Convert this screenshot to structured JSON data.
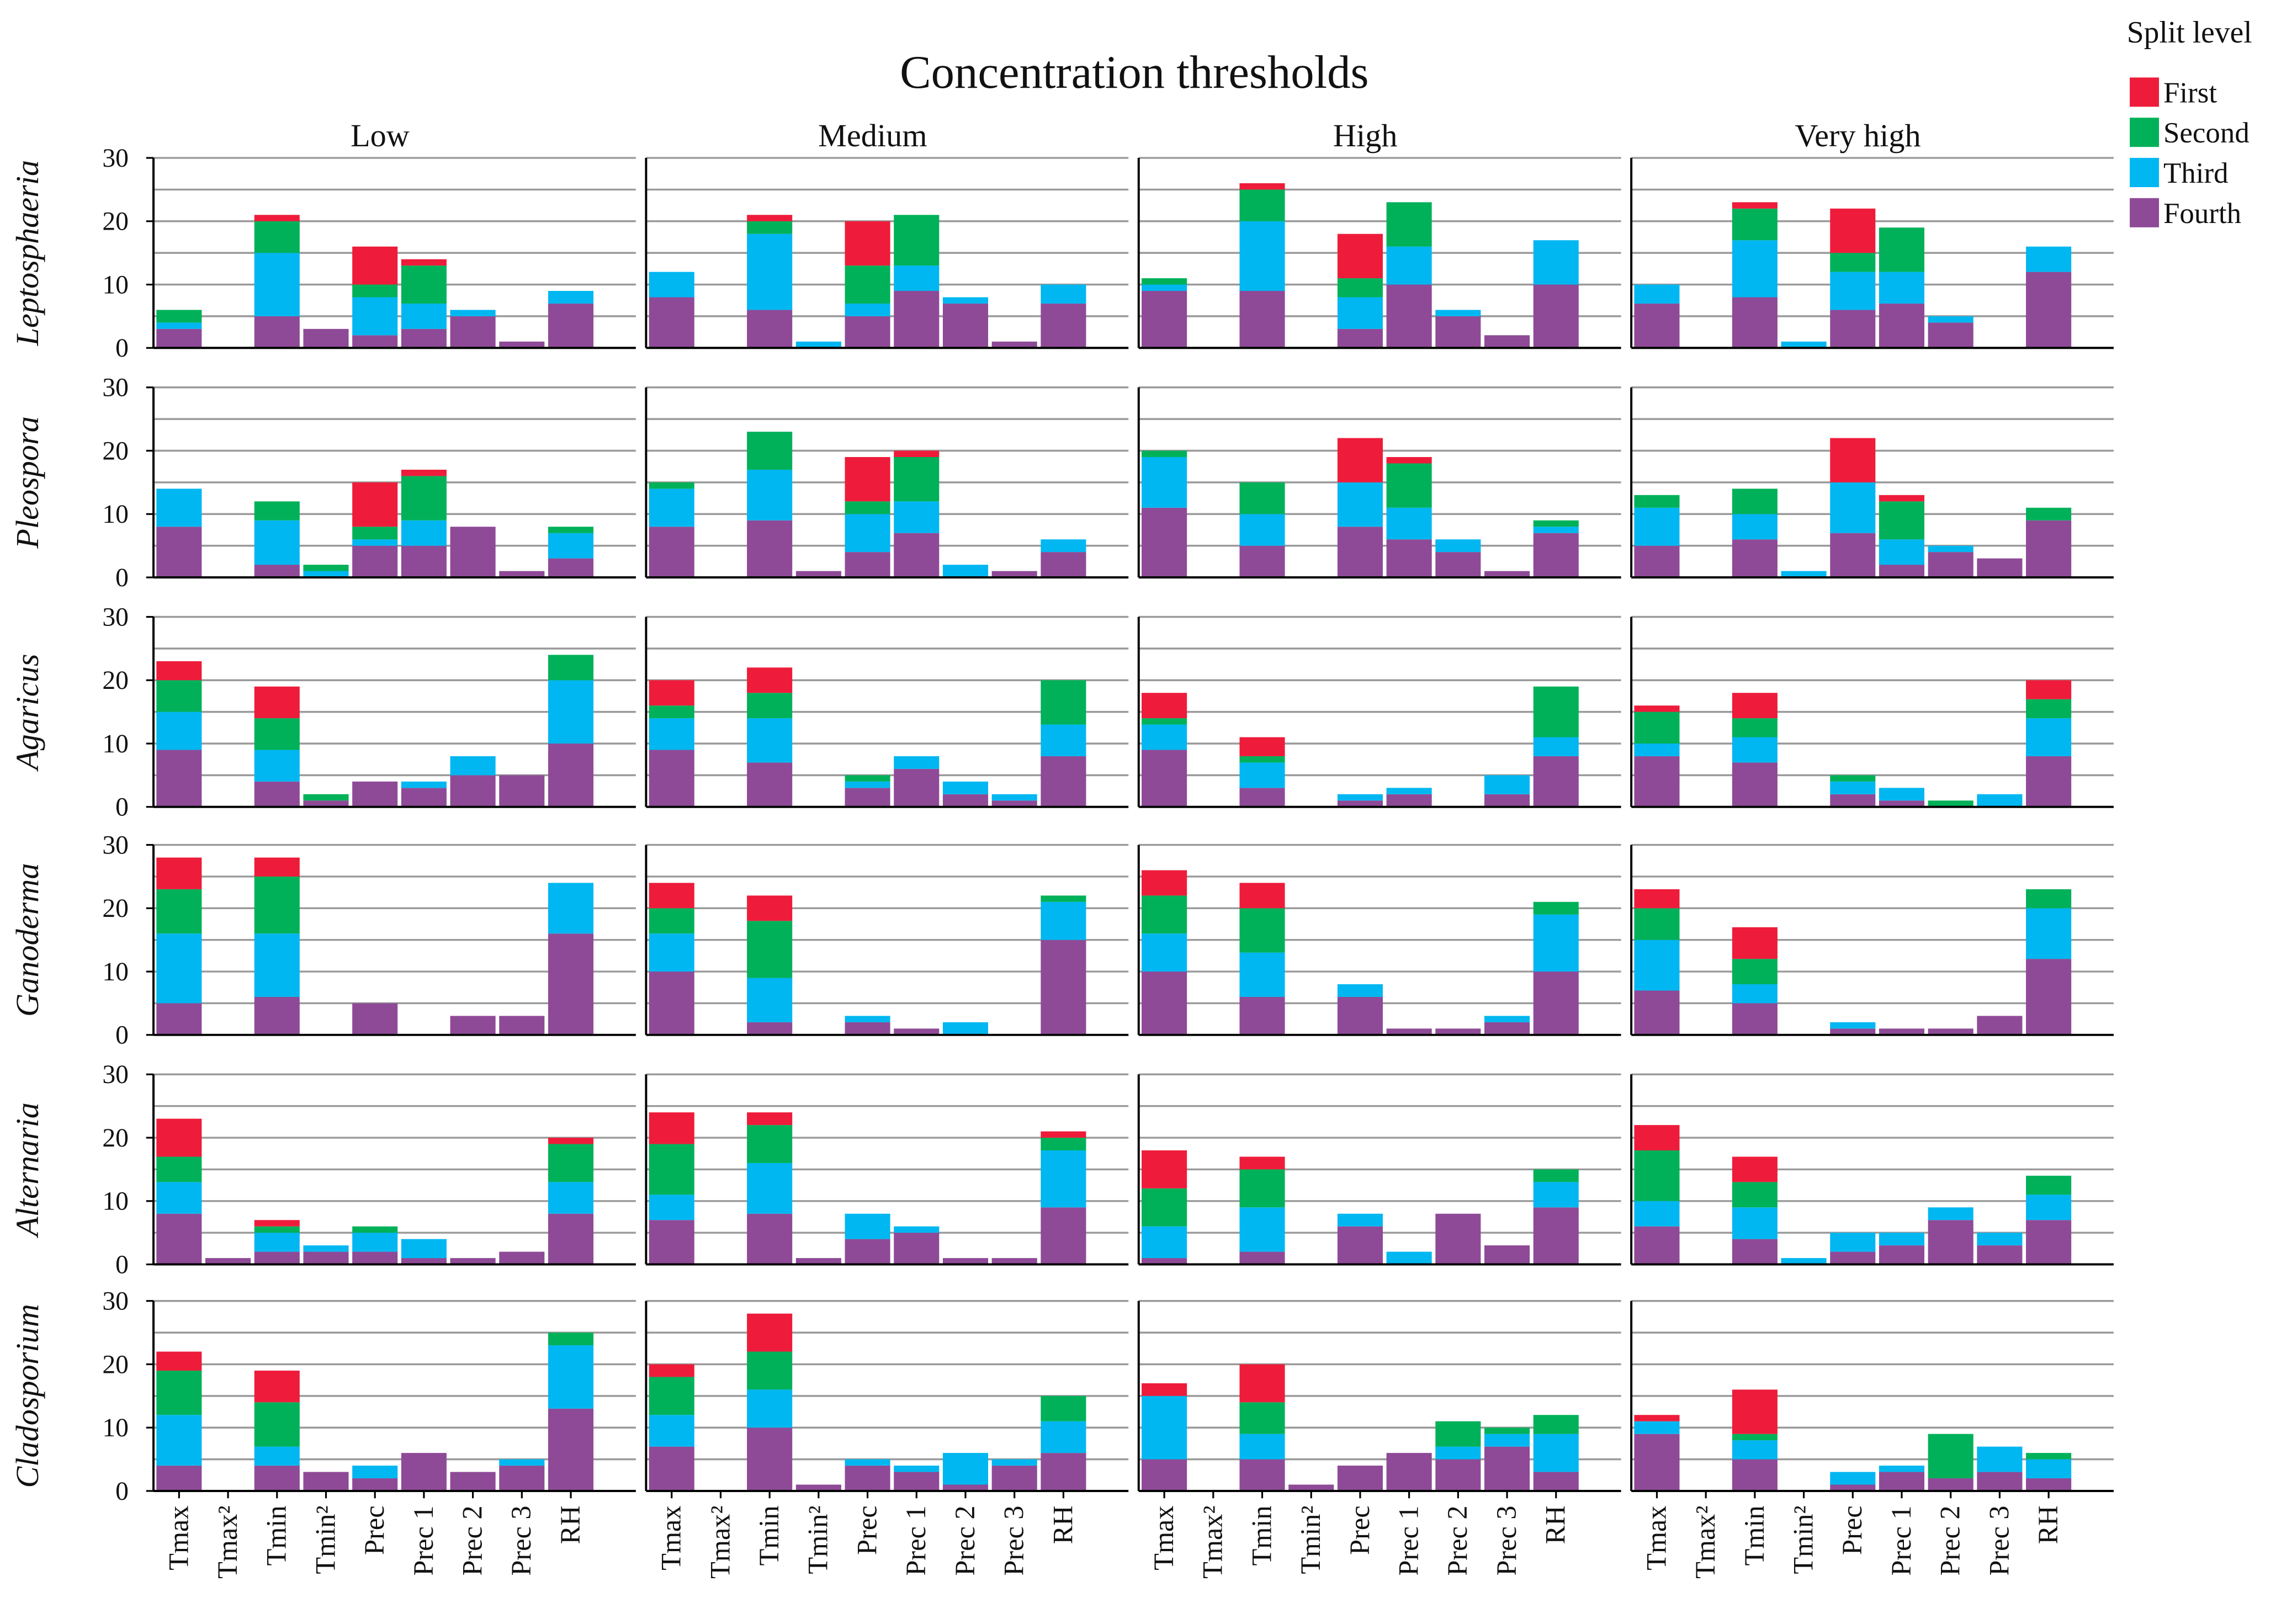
{
  "chart_data": {
    "type": "bar",
    "stacked": true,
    "title": "Concentration thresholds",
    "columns": [
      "Low",
      "Medium",
      "High",
      "Very high"
    ],
    "rows": [
      "Leptosphaeria",
      "Pleospora",
      "Agaricus",
      "Ganoderma",
      "Alternaria",
      "Cladosporium"
    ],
    "categories": [
      "Tmax",
      "Tmax²",
      "Tmin",
      "Tmin²",
      "Prec",
      "Prec 1",
      "Prec 2",
      "Prec 3",
      "RH"
    ],
    "ylim": [
      0,
      30
    ],
    "yticks": [
      "0",
      "10",
      "20",
      "30"
    ],
    "grid": true,
    "legend": {
      "title": "Split level",
      "placement": "top-right",
      "items": [
        {
          "name": "First",
          "color": "#EE1C3A"
        },
        {
          "name": "Second",
          "color": "#00B159"
        },
        {
          "name": "Third",
          "color": "#00B7F1"
        },
        {
          "name": "Fourth",
          "color": "#8E4A97"
        }
      ]
    },
    "stack_order": [
      "Fourth",
      "Third",
      "Second",
      "First"
    ],
    "panels": [
      [
        [
          [
            3,
            1,
            2,
            0
          ],
          [
            0,
            0,
            0,
            0
          ],
          [
            5,
            10,
            5,
            1
          ],
          [
            3,
            0,
            0,
            0
          ],
          [
            2,
            6,
            2,
            6
          ],
          [
            3,
            4,
            6,
            1
          ],
          [
            5,
            1,
            0,
            0
          ],
          [
            1,
            0,
            0,
            0
          ],
          [
            7,
            2,
            0,
            0
          ]
        ],
        [
          [
            8,
            4,
            0,
            0
          ],
          [
            0,
            0,
            0,
            0
          ],
          [
            6,
            12,
            2,
            1
          ],
          [
            0,
            1,
            0,
            0
          ],
          [
            5,
            2,
            6,
            7
          ],
          [
            9,
            4,
            8,
            0
          ],
          [
            7,
            1,
            0,
            0
          ],
          [
            1,
            0,
            0,
            0
          ],
          [
            7,
            3,
            0,
            0
          ]
        ],
        [
          [
            9,
            1,
            1,
            0
          ],
          [
            0,
            0,
            0,
            0
          ],
          [
            9,
            11,
            5,
            1
          ],
          [
            0,
            0,
            0,
            0
          ],
          [
            3,
            5,
            3,
            7
          ],
          [
            10,
            6,
            7,
            0
          ],
          [
            5,
            1,
            0,
            0
          ],
          [
            2,
            0,
            0,
            0
          ],
          [
            10,
            7,
            0,
            0
          ]
        ],
        [
          [
            7,
            3,
            0,
            0
          ],
          [
            0,
            0,
            0,
            0
          ],
          [
            8,
            9,
            5,
            1
          ],
          [
            0,
            1,
            0,
            0
          ],
          [
            6,
            6,
            3,
            7
          ],
          [
            7,
            5,
            7,
            0
          ],
          [
            4,
            1,
            0,
            0
          ],
          [
            0,
            0,
            0,
            0
          ],
          [
            12,
            4,
            0,
            0
          ]
        ]
      ],
      [
        [
          [
            8,
            6,
            0,
            0
          ],
          [
            0,
            0,
            0,
            0
          ],
          [
            2,
            7,
            3,
            0
          ],
          [
            0,
            1,
            1,
            0
          ],
          [
            5,
            1,
            2,
            7
          ],
          [
            5,
            4,
            7,
            1
          ],
          [
            8,
            0,
            0,
            0
          ],
          [
            1,
            0,
            0,
            0
          ],
          [
            3,
            4,
            1,
            0
          ]
        ],
        [
          [
            8,
            6,
            1,
            0
          ],
          [
            0,
            0,
            0,
            0
          ],
          [
            9,
            8,
            6,
            0
          ],
          [
            1,
            0,
            0,
            0
          ],
          [
            4,
            6,
            2,
            7
          ],
          [
            7,
            5,
            7,
            1
          ],
          [
            0,
            2,
            0,
            0
          ],
          [
            1,
            0,
            0,
            0
          ],
          [
            4,
            2,
            0,
            0
          ]
        ],
        [
          [
            11,
            8,
            1,
            0
          ],
          [
            0,
            0,
            0,
            0
          ],
          [
            5,
            5,
            5,
            0
          ],
          [
            0,
            0,
            0,
            0
          ],
          [
            8,
            7,
            0,
            7
          ],
          [
            6,
            5,
            7,
            1
          ],
          [
            4,
            2,
            0,
            0
          ],
          [
            1,
            0,
            0,
            0
          ],
          [
            7,
            1,
            1,
            0
          ]
        ],
        [
          [
            5,
            6,
            2,
            0
          ],
          [
            0,
            0,
            0,
            0
          ],
          [
            6,
            4,
            4,
            0
          ],
          [
            0,
            1,
            0,
            0
          ],
          [
            7,
            8,
            0,
            7
          ],
          [
            2,
            4,
            6,
            1
          ],
          [
            4,
            1,
            0,
            0
          ],
          [
            3,
            0,
            0,
            0
          ],
          [
            9,
            0,
            2,
            0
          ]
        ]
      ],
      [
        [
          [
            9,
            6,
            5,
            3
          ],
          [
            0,
            0,
            0,
            0
          ],
          [
            4,
            5,
            5,
            5
          ],
          [
            1,
            0,
            1,
            0
          ],
          [
            4,
            0,
            0,
            0
          ],
          [
            3,
            1,
            0,
            0
          ],
          [
            5,
            3,
            0,
            0
          ],
          [
            5,
            0,
            0,
            0
          ],
          [
            10,
            10,
            4,
            0
          ]
        ],
        [
          [
            9,
            5,
            2,
            4
          ],
          [
            0,
            0,
            0,
            0
          ],
          [
            7,
            7,
            4,
            4
          ],
          [
            0,
            0,
            0,
            0
          ],
          [
            3,
            1,
            1,
            0
          ],
          [
            6,
            2,
            0,
            0
          ],
          [
            2,
            2,
            0,
            0
          ],
          [
            1,
            1,
            0,
            0
          ],
          [
            8,
            5,
            7,
            0
          ]
        ],
        [
          [
            9,
            4,
            1,
            4
          ],
          [
            0,
            0,
            0,
            0
          ],
          [
            3,
            4,
            1,
            3
          ],
          [
            0,
            0,
            0,
            0
          ],
          [
            1,
            1,
            0,
            0
          ],
          [
            2,
            1,
            0,
            0
          ],
          [
            0,
            0,
            0,
            0
          ],
          [
            2,
            3,
            0,
            0
          ],
          [
            8,
            3,
            8,
            0
          ]
        ],
        [
          [
            8,
            2,
            5,
            1
          ],
          [
            0,
            0,
            0,
            0
          ],
          [
            7,
            4,
            3,
            4
          ],
          [
            0,
            0,
            0,
            0
          ],
          [
            2,
            2,
            1,
            0
          ],
          [
            1,
            2,
            0,
            0
          ],
          [
            0,
            0,
            1,
            0
          ],
          [
            0,
            2,
            0,
            0
          ],
          [
            8,
            6,
            3,
            3
          ]
        ]
      ],
      [
        [
          [
            5,
            11,
            7,
            5
          ],
          [
            0,
            0,
            0,
            0
          ],
          [
            6,
            10,
            9,
            3
          ],
          [
            0,
            0,
            0,
            0
          ],
          [
            5,
            0,
            0,
            0
          ],
          [
            0,
            0,
            0,
            0
          ],
          [
            3,
            0,
            0,
            0
          ],
          [
            3,
            0,
            0,
            0
          ],
          [
            16,
            8,
            0,
            0
          ]
        ],
        [
          [
            10,
            6,
            4,
            4
          ],
          [
            0,
            0,
            0,
            0
          ],
          [
            2,
            7,
            9,
            4
          ],
          [
            0,
            0,
            0,
            0
          ],
          [
            2,
            1,
            0,
            0
          ],
          [
            1,
            0,
            0,
            0
          ],
          [
            0,
            2,
            0,
            0
          ],
          [
            0,
            0,
            0,
            0
          ],
          [
            15,
            6,
            1,
            0
          ]
        ],
        [
          [
            10,
            6,
            6,
            4
          ],
          [
            0,
            0,
            0,
            0
          ],
          [
            6,
            7,
            7,
            4
          ],
          [
            0,
            0,
            0,
            0
          ],
          [
            6,
            2,
            0,
            0
          ],
          [
            1,
            0,
            0,
            0
          ],
          [
            1,
            0,
            0,
            0
          ],
          [
            2,
            1,
            0,
            0
          ],
          [
            10,
            9,
            2,
            0
          ]
        ],
        [
          [
            7,
            8,
            5,
            3
          ],
          [
            0,
            0,
            0,
            0
          ],
          [
            5,
            3,
            4,
            5
          ],
          [
            0,
            0,
            0,
            0
          ],
          [
            1,
            1,
            0,
            0
          ],
          [
            1,
            0,
            0,
            0
          ],
          [
            1,
            0,
            0,
            0
          ],
          [
            3,
            0,
            0,
            0
          ],
          [
            12,
            8,
            3,
            0
          ]
        ]
      ],
      [
        [
          [
            8,
            5,
            4,
            6
          ],
          [
            1,
            0,
            0,
            0
          ],
          [
            2,
            3,
            1,
            1
          ],
          [
            2,
            1,
            0,
            0
          ],
          [
            2,
            3,
            1,
            0
          ],
          [
            1,
            3,
            0,
            0
          ],
          [
            1,
            0,
            0,
            0
          ],
          [
            2,
            0,
            0,
            0
          ],
          [
            8,
            5,
            6,
            1
          ]
        ],
        [
          [
            7,
            4,
            8,
            5
          ],
          [
            0,
            0,
            0,
            0
          ],
          [
            8,
            8,
            6,
            2
          ],
          [
            1,
            0,
            0,
            0
          ],
          [
            4,
            4,
            0,
            0
          ],
          [
            5,
            1,
            0,
            0
          ],
          [
            1,
            0,
            0,
            0
          ],
          [
            1,
            0,
            0,
            0
          ],
          [
            9,
            9,
            2,
            1
          ]
        ],
        [
          [
            1,
            5,
            6,
            6
          ],
          [
            0,
            0,
            0,
            0
          ],
          [
            2,
            7,
            6,
            2
          ],
          [
            0,
            0,
            0,
            0
          ],
          [
            6,
            2,
            0,
            0
          ],
          [
            0,
            2,
            0,
            0
          ],
          [
            8,
            0,
            0,
            0
          ],
          [
            3,
            0,
            0,
            0
          ],
          [
            9,
            4,
            2,
            0
          ]
        ],
        [
          [
            6,
            4,
            8,
            4
          ],
          [
            0,
            0,
            0,
            0
          ],
          [
            4,
            5,
            4,
            4
          ],
          [
            0,
            1,
            0,
            0
          ],
          [
            2,
            3,
            0,
            0
          ],
          [
            3,
            2,
            0,
            0
          ],
          [
            7,
            2,
            0,
            0
          ],
          [
            3,
            2,
            0,
            0
          ],
          [
            7,
            4,
            3,
            0
          ]
        ]
      ],
      [
        [
          [
            4,
            8,
            7,
            3
          ],
          [
            0,
            0,
            0,
            0
          ],
          [
            4,
            3,
            7,
            5
          ],
          [
            3,
            0,
            0,
            0
          ],
          [
            2,
            2,
            0,
            0
          ],
          [
            6,
            0,
            0,
            0
          ],
          [
            3,
            0,
            0,
            0
          ],
          [
            4,
            1,
            0,
            0
          ],
          [
            13,
            10,
            2,
            0
          ]
        ],
        [
          [
            7,
            5,
            6,
            2
          ],
          [
            0,
            0,
            0,
            0
          ],
          [
            10,
            6,
            6,
            6
          ],
          [
            1,
            0,
            0,
            0
          ],
          [
            4,
            1,
            0,
            0
          ],
          [
            3,
            1,
            0,
            0
          ],
          [
            1,
            5,
            0,
            0
          ],
          [
            4,
            1,
            0,
            0
          ],
          [
            6,
            5,
            4,
            0
          ]
        ],
        [
          [
            5,
            10,
            0,
            2
          ],
          [
            0,
            0,
            0,
            0
          ],
          [
            5,
            4,
            5,
            6
          ],
          [
            1,
            0,
            0,
            0
          ],
          [
            4,
            0,
            0,
            0
          ],
          [
            6,
            0,
            0,
            0
          ],
          [
            5,
            2,
            4,
            0
          ],
          [
            7,
            2,
            1,
            0
          ],
          [
            3,
            6,
            3,
            0
          ]
        ],
        [
          [
            9,
            2,
            0,
            1
          ],
          [
            0,
            0,
            0,
            0
          ],
          [
            5,
            3,
            1,
            7
          ],
          [
            0,
            0,
            0,
            0
          ],
          [
            1,
            2,
            0,
            0
          ],
          [
            3,
            1,
            0,
            0
          ],
          [
            2,
            0,
            7,
            0
          ],
          [
            3,
            4,
            0,
            0
          ],
          [
            2,
            3,
            1,
            0
          ]
        ]
      ]
    ]
  }
}
